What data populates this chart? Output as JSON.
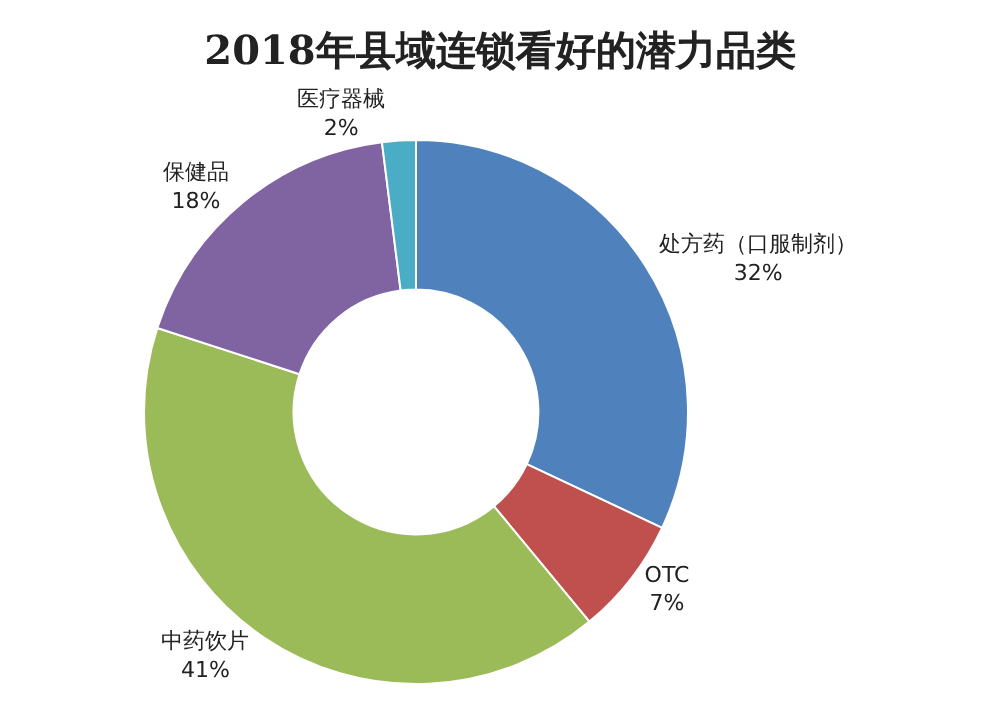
{
  "chart_data": {
    "type": "donut",
    "title": "2018年县域连锁看好的潜力品类",
    "categories": [
      "处方药（口服制剂）",
      "OTC",
      "中药饮片",
      "保健品",
      "医疗器械"
    ],
    "values": [
      32,
      7,
      41,
      18,
      2
    ],
    "value_labels": [
      "32%",
      "7%",
      "41%",
      "18%",
      "2%"
    ],
    "colors": [
      "#4f81bd",
      "#c0504d",
      "#9bbb59",
      "#8064a2",
      "#4bacc6"
    ],
    "legend": false
  }
}
